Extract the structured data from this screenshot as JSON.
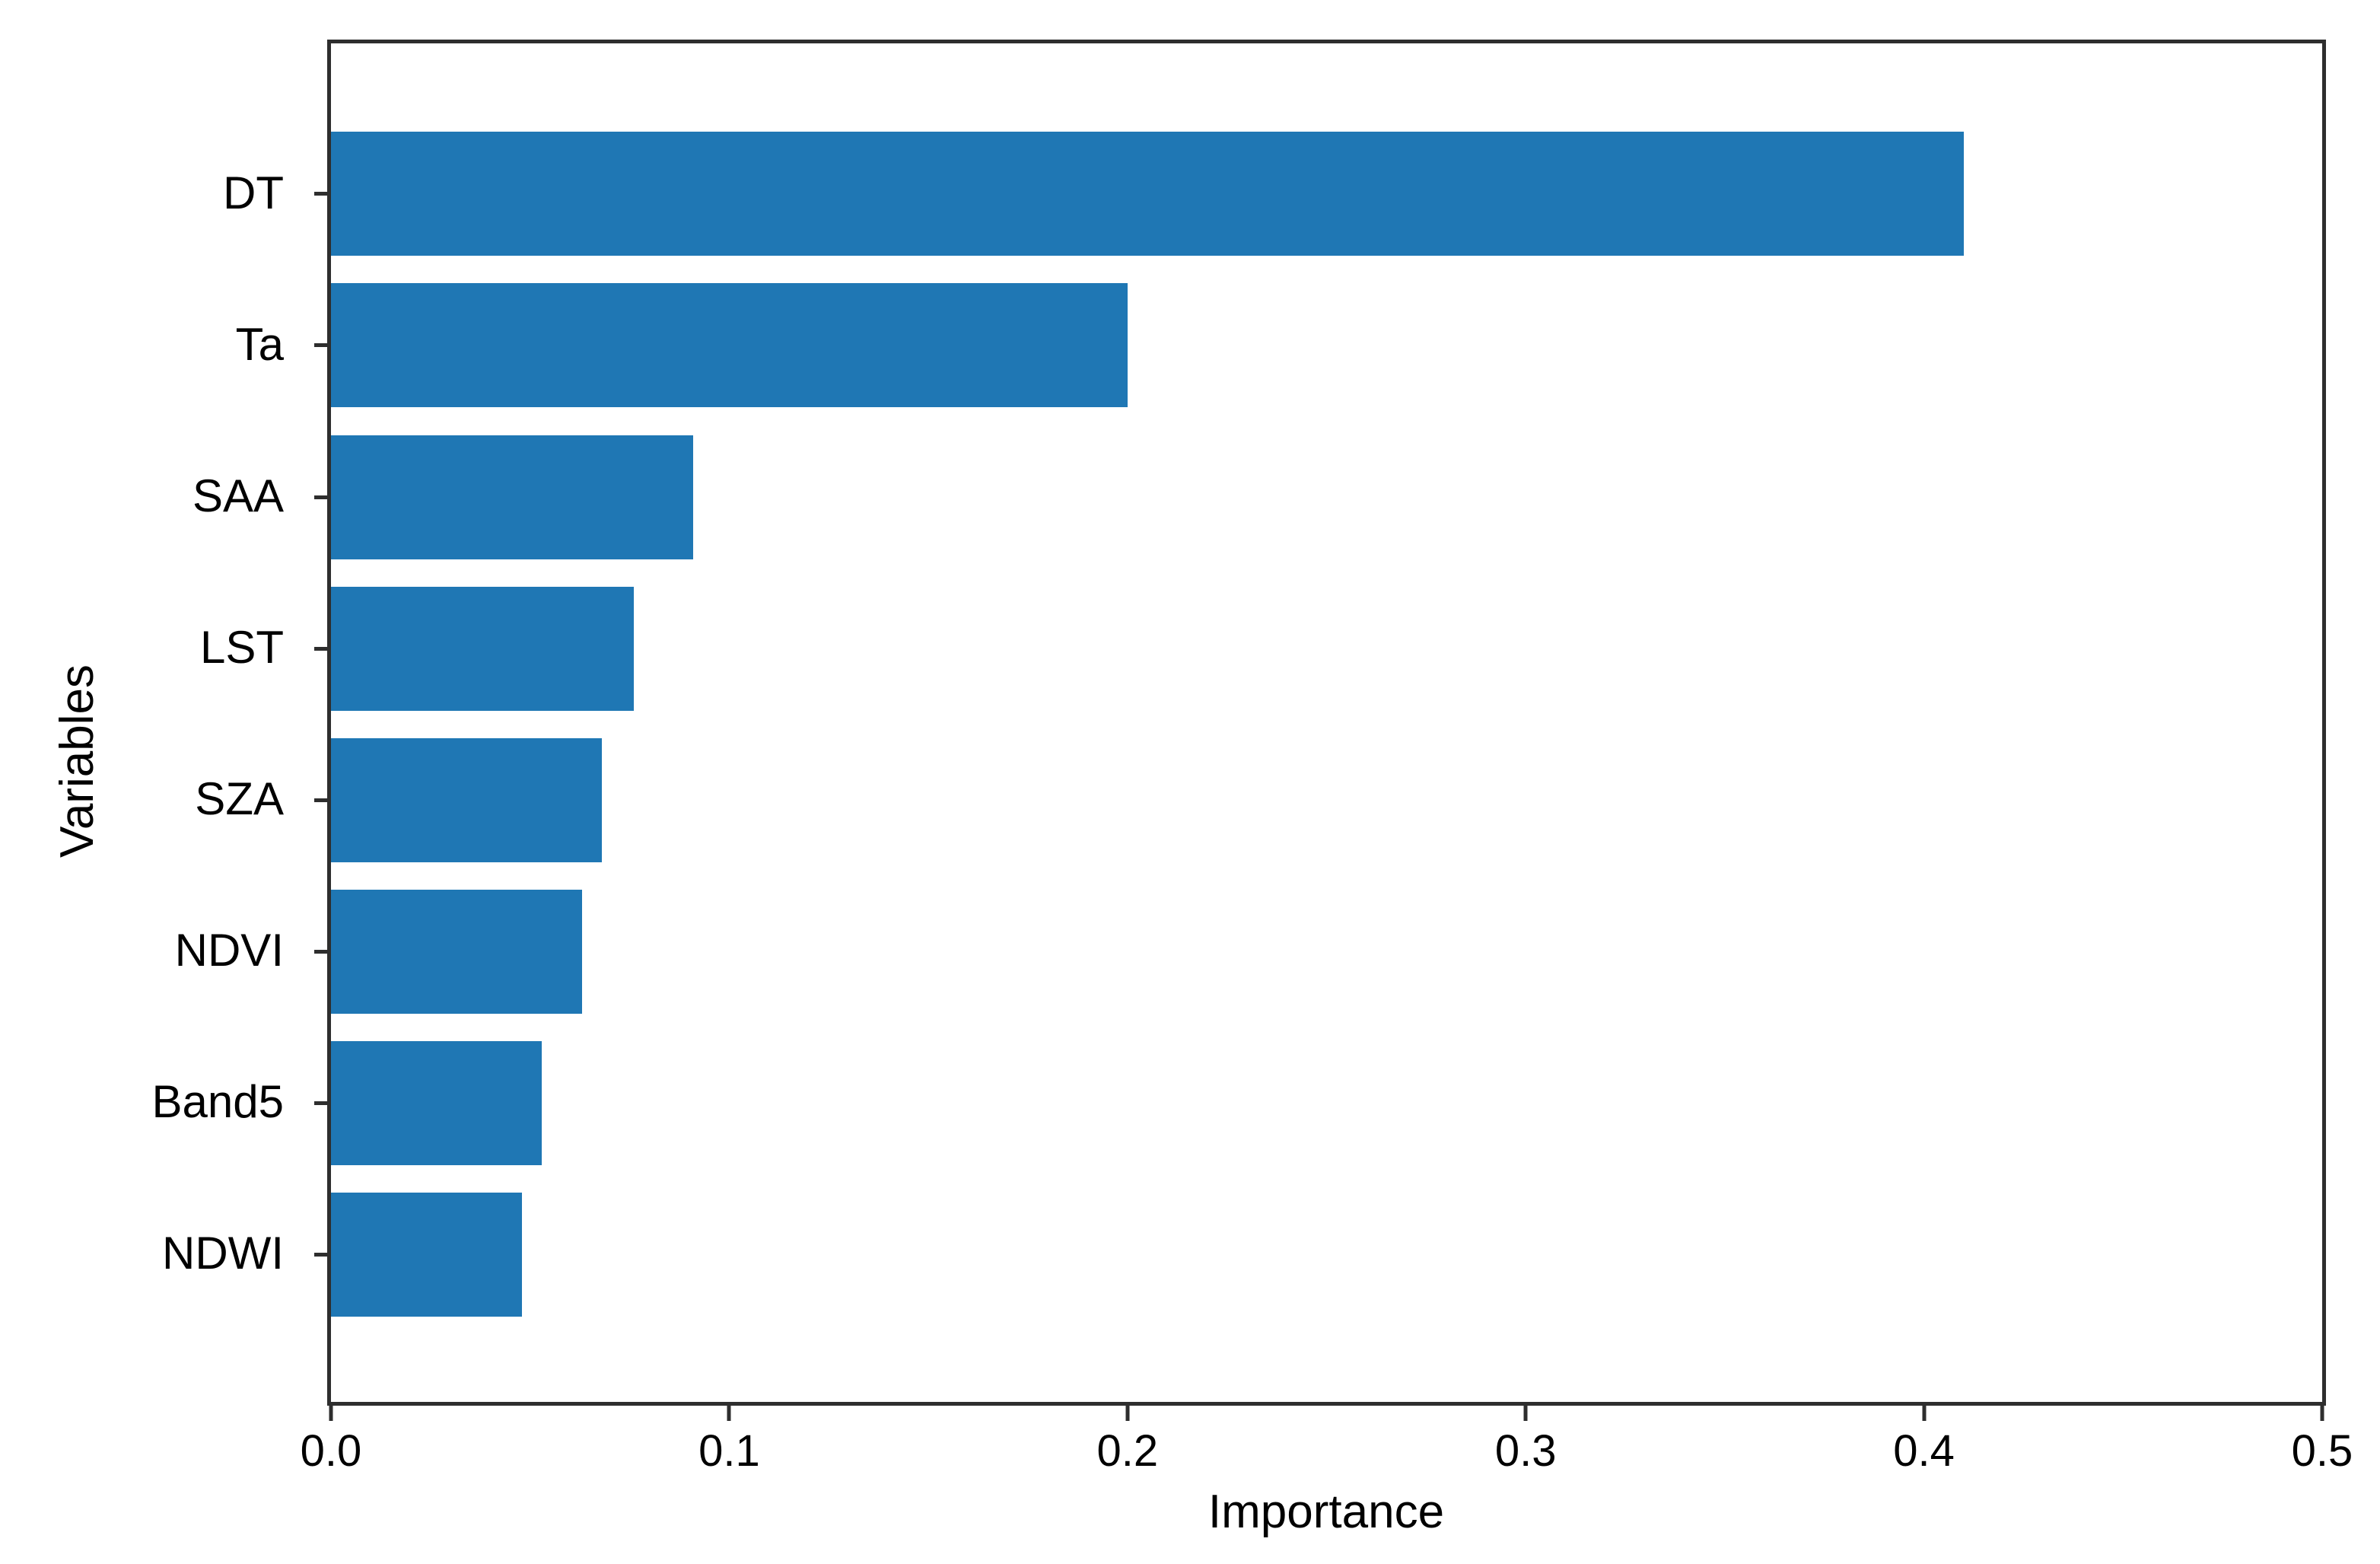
{
  "chart_data": {
    "type": "bar",
    "orientation": "horizontal",
    "xlabel": "Importance",
    "ylabel": "Variables",
    "categories": [
      "DT",
      "Ta",
      "SAA",
      "LST",
      "SZA",
      "NDVI",
      "Band5",
      "NDWI"
    ],
    "values": [
      0.41,
      0.2,
      0.091,
      0.076,
      0.068,
      0.063,
      0.053,
      0.048
    ],
    "xlim": [
      0.0,
      0.5
    ],
    "xtick_labels": [
      "0.0",
      "0.1",
      "0.2",
      "0.3",
      "0.4",
      "0.5"
    ],
    "grid": false,
    "bar_color": "#1f77b4",
    "axis_color": "#2e2e2e",
    "text_color": "#000000"
  }
}
